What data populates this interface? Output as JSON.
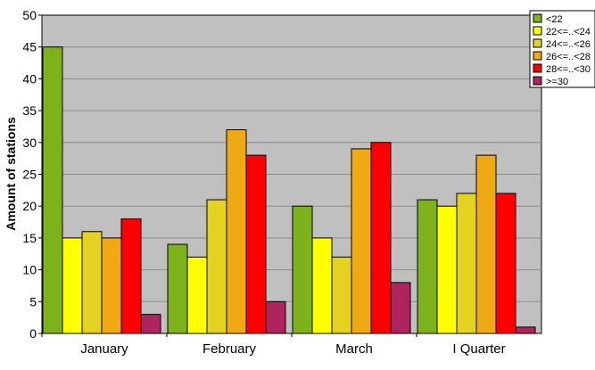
{
  "chart_data": {
    "type": "bar",
    "ylabel": "Amount of stations",
    "xlabel": "",
    "ylim": [
      0,
      50
    ],
    "yticks": [
      0,
      5,
      10,
      15,
      20,
      25,
      30,
      35,
      40,
      45,
      50
    ],
    "grid": "horizontal",
    "legend_position": "top-right",
    "plot_background": "#c0c0c0",
    "categories": [
      "January",
      "February",
      "March",
      "I Quarter"
    ],
    "series": [
      {
        "name": "<22",
        "color": "#7db21c",
        "values": [
          45,
          14,
          20,
          21
        ]
      },
      {
        "name": "22<=..<24",
        "color": "#ffff00",
        "values": [
          15,
          12,
          15,
          20
        ]
      },
      {
        "name": "24<=..<26",
        "color": "#e3d21f",
        "values": [
          16,
          21,
          12,
          22
        ]
      },
      {
        "name": "26<=..<28",
        "color": "#efa913",
        "values": [
          15,
          32,
          29,
          28
        ]
      },
      {
        "name": "28<=..<30",
        "color": "#ff0000",
        "values": [
          18,
          28,
          30,
          22
        ]
      },
      {
        "name": ">=30",
        "color": "#b0245e",
        "values": [
          3,
          5,
          8,
          1
        ]
      }
    ]
  }
}
